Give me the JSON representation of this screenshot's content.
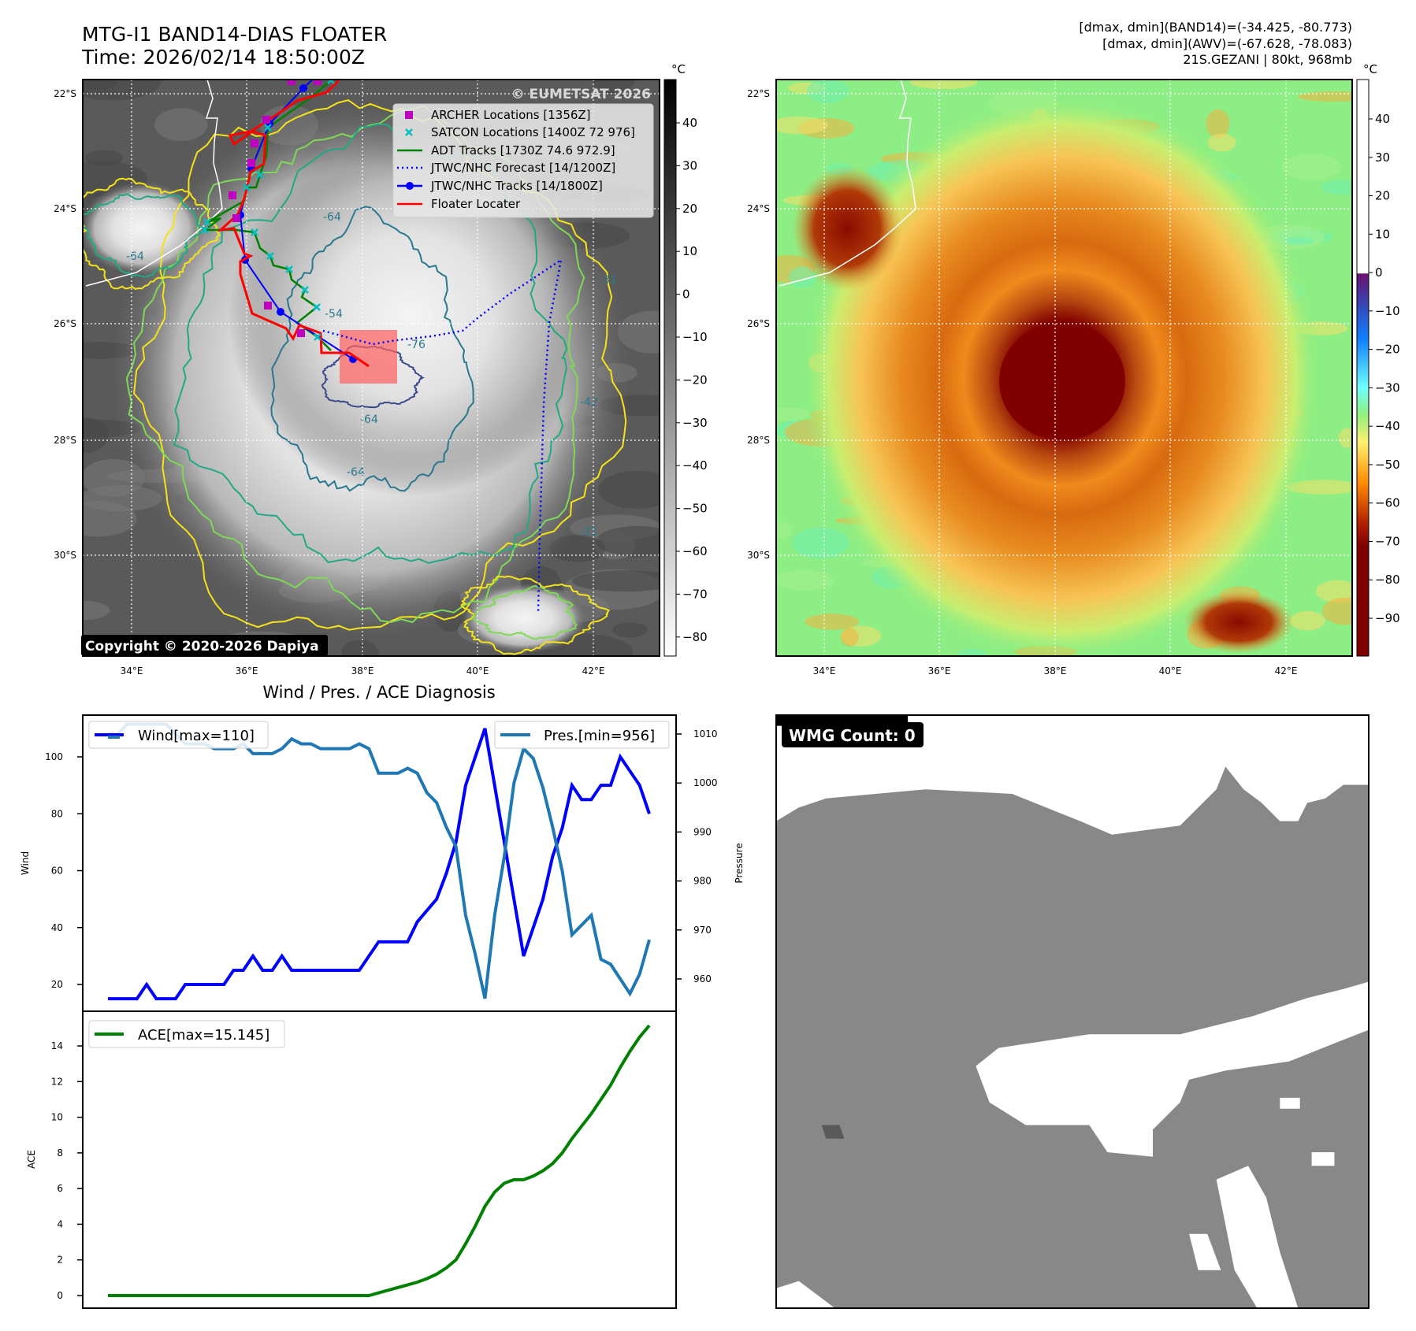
{
  "header": {
    "title": "MTG-I1 BAND14-DIAS FLOATER",
    "time": "Time: 2026/02/14 18:50:00Z",
    "stats_band14": "[dmax, dmin](BAND14)=(-34.425, -80.773)",
    "stats_awv": "[dmax, dmin](AWV)=(-67.628, -78.083)",
    "storm_info": "21S.GEZANI | 80kt, 968mb"
  },
  "map_left": {
    "watermark": "© EUMETSAT 2026",
    "copyright": "Copyright © 2020-2026 Dapiya",
    "lat_ticks": [
      "22°S",
      "24°S",
      "26°S",
      "28°S",
      "30°S"
    ],
    "lon_ticks": [
      "34°E",
      "36°E",
      "38°E",
      "40°E",
      "42°E"
    ],
    "contour_labels": [
      "-31",
      "-42",
      "-54",
      "-64",
      "-76"
    ],
    "legend": [
      {
        "label": "ARCHER Locations [1356Z]",
        "color": "#c000c0",
        "marker": "square"
      },
      {
        "label": "SATCON Locations [1400Z 72 976]",
        "color": "#00c0c0",
        "marker": "x"
      },
      {
        "label": "ADT Tracks [1730Z 74.6 972.9]",
        "color": "#008000",
        "marker": "line"
      },
      {
        "label": "JTWC/NHC Forecast [14/1200Z]",
        "color": "#0000ff",
        "marker": "dotted"
      },
      {
        "label": "JTWC/NHC Tracks [14/1800Z]",
        "color": "#0000ff",
        "marker": "line-dot"
      },
      {
        "label": "Floater Locater",
        "color": "#ff0000",
        "marker": "line"
      }
    ],
    "colorbar": {
      "unit": "°C",
      "ticks": [
        "40",
        "30",
        "20",
        "10",
        "0",
        "−10",
        "−20",
        "−30",
        "−40",
        "−50",
        "−60",
        "−70",
        "−80"
      ]
    }
  },
  "map_right": {
    "lat_ticks": [
      "22°S",
      "24°S",
      "26°S",
      "28°S",
      "30°S"
    ],
    "lon_ticks": [
      "34°E",
      "36°E",
      "38°E",
      "40°E",
      "42°E"
    ],
    "colorbar": {
      "unit": "°C",
      "ticks": [
        "40",
        "30",
        "20",
        "10",
        "0",
        "−10",
        "−20",
        "−30",
        "−40",
        "−50",
        "−60",
        "−70",
        "−80",
        "−90"
      ]
    }
  },
  "wmg": {
    "label": "WMG Count: 0"
  },
  "chart_data": [
    {
      "type": "line",
      "title": "Wind / Pres. / ACE Diagnosis",
      "ylabel": "Wind",
      "y2label": "Pressure",
      "series": [
        {
          "name": "Wind[max=110]",
          "color": "#0000ff",
          "axis": "left",
          "values": [
            15,
            15,
            15,
            15,
            20,
            15,
            15,
            15,
            20,
            20,
            20,
            20,
            20,
            25,
            25,
            30,
            25,
            25,
            30,
            25,
            25,
            25,
            25,
            25,
            25,
            25,
            25,
            30,
            35,
            35,
            35,
            35,
            42,
            46,
            50,
            59,
            70,
            90,
            100,
            110,
            90,
            70,
            50,
            30,
            40,
            50,
            65,
            75,
            90,
            85,
            85,
            90,
            90,
            100,
            95,
            90,
            80
          ]
        },
        {
          "name": "Pres.[min=956]",
          "color": "#1f77b4",
          "axis": "right",
          "values": [
            1010,
            1010,
            1012,
            1012,
            1012,
            1012,
            1012,
            1010,
            1008,
            1008,
            1008,
            1007,
            1007,
            1007,
            1008,
            1006,
            1006,
            1006,
            1007,
            1009,
            1008,
            1008,
            1007,
            1007,
            1007,
            1007,
            1008,
            1007,
            1002,
            1002,
            1002,
            1003,
            1002,
            998,
            996,
            991,
            987,
            973,
            965,
            956,
            973,
            985,
            1000,
            1007,
            1005,
            999,
            991,
            982,
            969,
            971,
            973,
            964,
            963,
            960,
            957,
            961,
            968
          ]
        }
      ],
      "yticks": [
        "20",
        "40",
        "60",
        "80",
        "100"
      ],
      "y2ticks": [
        "960",
        "970",
        "980",
        "990",
        "1000",
        "1010"
      ],
      "ylim": [
        11,
        115
      ],
      "y2lim": [
        954,
        1014
      ]
    },
    {
      "type": "line",
      "ylabel": "ACE",
      "series": [
        {
          "name": "ACE[max=15.145]",
          "color": "#008000",
          "values": [
            0,
            0,
            0,
            0,
            0,
            0,
            0,
            0,
            0,
            0,
            0,
            0,
            0,
            0,
            0,
            0,
            0,
            0,
            0,
            0,
            0,
            0,
            0,
            0,
            0,
            0,
            0,
            0,
            0.15,
            0.3,
            0.45,
            0.6,
            0.75,
            0.95,
            1.2,
            1.55,
            2.0,
            2.9,
            3.9,
            5.0,
            5.8,
            6.3,
            6.5,
            6.5,
            6.7,
            7.0,
            7.4,
            8.0,
            8.8,
            9.5,
            10.2,
            11.0,
            11.8,
            12.8,
            13.7,
            14.5,
            15.145
          ]
        }
      ],
      "yticks": [
        "0",
        "2",
        "4",
        "6",
        "8",
        "10",
        "12",
        "14"
      ],
      "ylim": [
        -0.7,
        15.6
      ]
    }
  ]
}
